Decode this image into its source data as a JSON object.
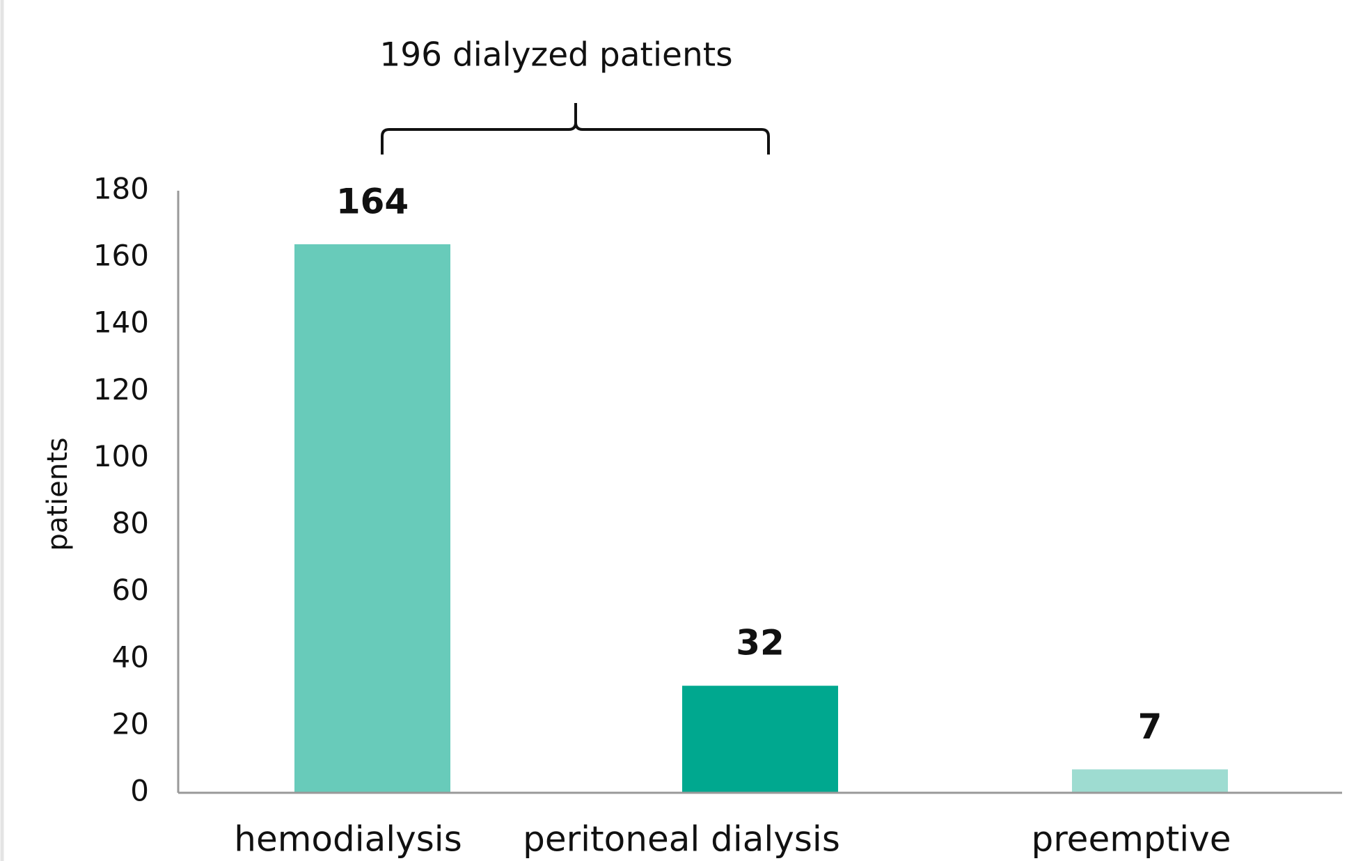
{
  "chart_data": {
    "type": "bar",
    "annotation": "196 dialyzed patients",
    "ylabel": "patients",
    "categories": [
      "hemodialysis",
      "peritoneal dialysis",
      "preemptive"
    ],
    "values": [
      164,
      32,
      7
    ],
    "colors": [
      "#68cbba",
      "#00a88f",
      "#9edcd1"
    ],
    "ylim": [
      0,
      180
    ],
    "yticks": [
      0,
      20,
      40,
      60,
      80,
      100,
      120,
      140,
      160,
      180
    ],
    "grid": false
  }
}
